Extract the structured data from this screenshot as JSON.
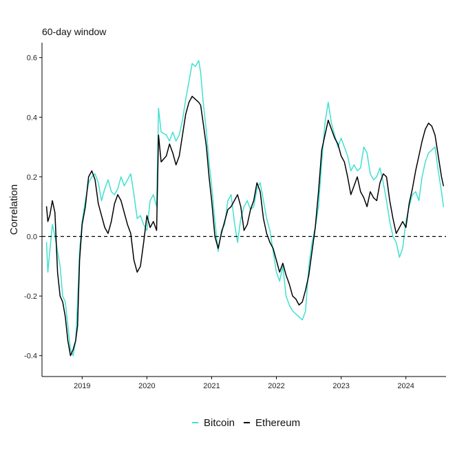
{
  "chart_data": {
    "type": "line",
    "title": "60-day window",
    "xlabel": "",
    "ylabel": "Correlation",
    "x_range": [
      2018.38,
      2024.62
    ],
    "ylim": [
      -0.47,
      0.65
    ],
    "y_ticks": [
      -0.4,
      -0.2,
      0.0,
      0.2,
      0.4,
      0.6
    ],
    "y_tick_labels": [
      "-0.4",
      "-0.2",
      "0.0",
      "0.2",
      "0.4",
      "0.6"
    ],
    "x_ticks": [
      2019,
      2020,
      2021,
      2022,
      2023,
      2024
    ],
    "x_tick_labels": [
      "2019",
      "2020",
      "2021",
      "2022",
      "2023",
      "2024"
    ],
    "reference_line": {
      "y": 0.0,
      "style": "dashed"
    },
    "grid": false,
    "legend_position": "bottom",
    "series": [
      {
        "name": "Bitcoin",
        "color": "#40E0D0",
        "points": [
          [
            2018.45,
            -0.02
          ],
          [
            2018.47,
            -0.12
          ],
          [
            2018.5,
            -0.05
          ],
          [
            2018.54,
            0.04
          ],
          [
            2018.58,
            0.0
          ],
          [
            2018.62,
            -0.05
          ],
          [
            2018.66,
            -0.1
          ],
          [
            2018.7,
            -0.2
          ],
          [
            2018.74,
            -0.22
          ],
          [
            2018.78,
            -0.3
          ],
          [
            2018.82,
            -0.38
          ],
          [
            2018.86,
            -0.4
          ],
          [
            2018.9,
            -0.35
          ],
          [
            2018.93,
            -0.22
          ],
          [
            2018.96,
            -0.05
          ],
          [
            2019.0,
            0.05
          ],
          [
            2019.05,
            0.12
          ],
          [
            2019.1,
            0.18
          ],
          [
            2019.15,
            0.2
          ],
          [
            2019.2,
            0.21
          ],
          [
            2019.25,
            0.18
          ],
          [
            2019.3,
            0.12
          ],
          [
            2019.35,
            0.16
          ],
          [
            2019.4,
            0.19
          ],
          [
            2019.45,
            0.15
          ],
          [
            2019.5,
            0.14
          ],
          [
            2019.55,
            0.16
          ],
          [
            2019.6,
            0.2
          ],
          [
            2019.65,
            0.17
          ],
          [
            2019.7,
            0.19
          ],
          [
            2019.75,
            0.21
          ],
          [
            2019.8,
            0.14
          ],
          [
            2019.85,
            0.06
          ],
          [
            2019.9,
            0.07
          ],
          [
            2019.95,
            0.04
          ],
          [
            2020.0,
            0.02
          ],
          [
            2020.05,
            0.12
          ],
          [
            2020.1,
            0.14
          ],
          [
            2020.15,
            0.1
          ],
          [
            2020.18,
            0.43
          ],
          [
            2020.22,
            0.35
          ],
          [
            2020.3,
            0.34
          ],
          [
            2020.35,
            0.32
          ],
          [
            2020.4,
            0.35
          ],
          [
            2020.45,
            0.32
          ],
          [
            2020.5,
            0.34
          ],
          [
            2020.55,
            0.39
          ],
          [
            2020.6,
            0.46
          ],
          [
            2020.65,
            0.52
          ],
          [
            2020.7,
            0.58
          ],
          [
            2020.75,
            0.57
          ],
          [
            2020.8,
            0.59
          ],
          [
            2020.83,
            0.55
          ],
          [
            2020.87,
            0.45
          ],
          [
            2020.92,
            0.35
          ],
          [
            2020.96,
            0.25
          ],
          [
            2021.0,
            0.17
          ],
          [
            2021.05,
            0.05
          ],
          [
            2021.1,
            -0.05
          ],
          [
            2021.15,
            0.02
          ],
          [
            2021.2,
            0.04
          ],
          [
            2021.25,
            0.12
          ],
          [
            2021.3,
            0.14
          ],
          [
            2021.35,
            0.05
          ],
          [
            2021.4,
            -0.02
          ],
          [
            2021.45,
            0.06
          ],
          [
            2021.5,
            0.1
          ],
          [
            2021.55,
            0.12
          ],
          [
            2021.6,
            0.09
          ],
          [
            2021.65,
            0.1
          ],
          [
            2021.7,
            0.16
          ],
          [
            2021.75,
            0.18
          ],
          [
            2021.8,
            0.12
          ],
          [
            2021.85,
            0.06
          ],
          [
            2021.9,
            0.02
          ],
          [
            2021.95,
            -0.05
          ],
          [
            2022.0,
            -0.12
          ],
          [
            2022.05,
            -0.15
          ],
          [
            2022.1,
            -0.1
          ],
          [
            2022.15,
            -0.2
          ],
          [
            2022.2,
            -0.23
          ],
          [
            2022.25,
            -0.25
          ],
          [
            2022.3,
            -0.26
          ],
          [
            2022.35,
            -0.27
          ],
          [
            2022.4,
            -0.28
          ],
          [
            2022.45,
            -0.25
          ],
          [
            2022.5,
            -0.1
          ],
          [
            2022.55,
            -0.02
          ],
          [
            2022.6,
            0.03
          ],
          [
            2022.65,
            0.1
          ],
          [
            2022.7,
            0.25
          ],
          [
            2022.75,
            0.38
          ],
          [
            2022.8,
            0.45
          ],
          [
            2022.85,
            0.38
          ],
          [
            2022.9,
            0.34
          ],
          [
            2022.95,
            0.3
          ],
          [
            2023.0,
            0.33
          ],
          [
            2023.05,
            0.3
          ],
          [
            2023.1,
            0.27
          ],
          [
            2023.15,
            0.22
          ],
          [
            2023.2,
            0.24
          ],
          [
            2023.25,
            0.22
          ],
          [
            2023.3,
            0.23
          ],
          [
            2023.35,
            0.3
          ],
          [
            2023.4,
            0.28
          ],
          [
            2023.45,
            0.21
          ],
          [
            2023.5,
            0.19
          ],
          [
            2023.55,
            0.2
          ],
          [
            2023.6,
            0.23
          ],
          [
            2023.65,
            0.18
          ],
          [
            2023.7,
            0.12
          ],
          [
            2023.75,
            0.05
          ],
          [
            2023.8,
            0.0
          ],
          [
            2023.85,
            -0.02
          ],
          [
            2023.9,
            -0.07
          ],
          [
            2023.95,
            -0.04
          ],
          [
            2024.0,
            0.05
          ],
          [
            2024.05,
            0.1
          ],
          [
            2024.1,
            0.14
          ],
          [
            2024.15,
            0.15
          ],
          [
            2024.2,
            0.12
          ],
          [
            2024.25,
            0.2
          ],
          [
            2024.3,
            0.25
          ],
          [
            2024.35,
            0.28
          ],
          [
            2024.4,
            0.29
          ],
          [
            2024.45,
            0.3
          ],
          [
            2024.5,
            0.22
          ],
          [
            2024.55,
            0.15
          ],
          [
            2024.58,
            0.1
          ]
        ]
      },
      {
        "name": "Ethereum",
        "color": "#000000",
        "points": [
          [
            2018.45,
            0.1
          ],
          [
            2018.47,
            0.05
          ],
          [
            2018.5,
            0.07
          ],
          [
            2018.54,
            0.12
          ],
          [
            2018.58,
            0.08
          ],
          [
            2018.62,
            -0.12
          ],
          [
            2018.66,
            -0.2
          ],
          [
            2018.7,
            -0.22
          ],
          [
            2018.74,
            -0.27
          ],
          [
            2018.78,
            -0.35
          ],
          [
            2018.82,
            -0.4
          ],
          [
            2018.86,
            -0.38
          ],
          [
            2018.9,
            -0.35
          ],
          [
            2018.93,
            -0.3
          ],
          [
            2018.96,
            -0.08
          ],
          [
            2019.0,
            0.04
          ],
          [
            2019.05,
            0.1
          ],
          [
            2019.1,
            0.2
          ],
          [
            2019.15,
            0.22
          ],
          [
            2019.2,
            0.19
          ],
          [
            2019.25,
            0.11
          ],
          [
            2019.3,
            0.07
          ],
          [
            2019.35,
            0.03
          ],
          [
            2019.4,
            0.01
          ],
          [
            2019.45,
            0.05
          ],
          [
            2019.5,
            0.11
          ],
          [
            2019.55,
            0.14
          ],
          [
            2019.6,
            0.12
          ],
          [
            2019.65,
            0.08
          ],
          [
            2019.7,
            0.04
          ],
          [
            2019.75,
            0.01
          ],
          [
            2019.8,
            -0.08
          ],
          [
            2019.85,
            -0.12
          ],
          [
            2019.9,
            -0.1
          ],
          [
            2019.95,
            -0.02
          ],
          [
            2020.0,
            0.07
          ],
          [
            2020.05,
            0.03
          ],
          [
            2020.1,
            0.05
          ],
          [
            2020.15,
            0.02
          ],
          [
            2020.18,
            0.34
          ],
          [
            2020.22,
            0.25
          ],
          [
            2020.3,
            0.27
          ],
          [
            2020.35,
            0.31
          ],
          [
            2020.4,
            0.28
          ],
          [
            2020.45,
            0.24
          ],
          [
            2020.5,
            0.27
          ],
          [
            2020.55,
            0.34
          ],
          [
            2020.6,
            0.41
          ],
          [
            2020.65,
            0.45
          ],
          [
            2020.7,
            0.47
          ],
          [
            2020.75,
            0.46
          ],
          [
            2020.8,
            0.45
          ],
          [
            2020.83,
            0.44
          ],
          [
            2020.87,
            0.38
          ],
          [
            2020.92,
            0.3
          ],
          [
            2020.96,
            0.2
          ],
          [
            2021.0,
            0.12
          ],
          [
            2021.05,
            0.0
          ],
          [
            2021.1,
            -0.04
          ],
          [
            2021.15,
            0.01
          ],
          [
            2021.2,
            0.05
          ],
          [
            2021.25,
            0.09
          ],
          [
            2021.3,
            0.1
          ],
          [
            2021.35,
            0.12
          ],
          [
            2021.4,
            0.14
          ],
          [
            2021.45,
            0.1
          ],
          [
            2021.5,
            0.02
          ],
          [
            2021.55,
            0.04
          ],
          [
            2021.6,
            0.09
          ],
          [
            2021.65,
            0.12
          ],
          [
            2021.7,
            0.18
          ],
          [
            2021.75,
            0.15
          ],
          [
            2021.8,
            0.06
          ],
          [
            2021.85,
            0.01
          ],
          [
            2021.9,
            -0.02
          ],
          [
            2021.95,
            -0.04
          ],
          [
            2022.0,
            -0.08
          ],
          [
            2022.05,
            -0.12
          ],
          [
            2022.1,
            -0.09
          ],
          [
            2022.15,
            -0.13
          ],
          [
            2022.2,
            -0.16
          ],
          [
            2022.25,
            -0.2
          ],
          [
            2022.3,
            -0.21
          ],
          [
            2022.35,
            -0.23
          ],
          [
            2022.4,
            -0.22
          ],
          [
            2022.45,
            -0.18
          ],
          [
            2022.5,
            -0.13
          ],
          [
            2022.55,
            -0.05
          ],
          [
            2022.6,
            0.03
          ],
          [
            2022.65,
            0.15
          ],
          [
            2022.7,
            0.29
          ],
          [
            2022.75,
            0.34
          ],
          [
            2022.8,
            0.39
          ],
          [
            2022.85,
            0.36
          ],
          [
            2022.9,
            0.33
          ],
          [
            2022.95,
            0.31
          ],
          [
            2023.0,
            0.27
          ],
          [
            2023.05,
            0.25
          ],
          [
            2023.1,
            0.2
          ],
          [
            2023.15,
            0.14
          ],
          [
            2023.2,
            0.17
          ],
          [
            2023.25,
            0.2
          ],
          [
            2023.3,
            0.15
          ],
          [
            2023.35,
            0.13
          ],
          [
            2023.4,
            0.1
          ],
          [
            2023.45,
            0.15
          ],
          [
            2023.5,
            0.13
          ],
          [
            2023.55,
            0.12
          ],
          [
            2023.6,
            0.18
          ],
          [
            2023.65,
            0.21
          ],
          [
            2023.7,
            0.2
          ],
          [
            2023.75,
            0.12
          ],
          [
            2023.8,
            0.06
          ],
          [
            2023.85,
            0.01
          ],
          [
            2023.9,
            0.03
          ],
          [
            2023.95,
            0.05
          ],
          [
            2024.0,
            0.03
          ],
          [
            2024.05,
            0.11
          ],
          [
            2024.1,
            0.16
          ],
          [
            2024.15,
            0.22
          ],
          [
            2024.2,
            0.27
          ],
          [
            2024.25,
            0.32
          ],
          [
            2024.3,
            0.36
          ],
          [
            2024.35,
            0.38
          ],
          [
            2024.4,
            0.37
          ],
          [
            2024.45,
            0.34
          ],
          [
            2024.5,
            0.27
          ],
          [
            2024.55,
            0.2
          ],
          [
            2024.58,
            0.17
          ]
        ]
      }
    ]
  }
}
